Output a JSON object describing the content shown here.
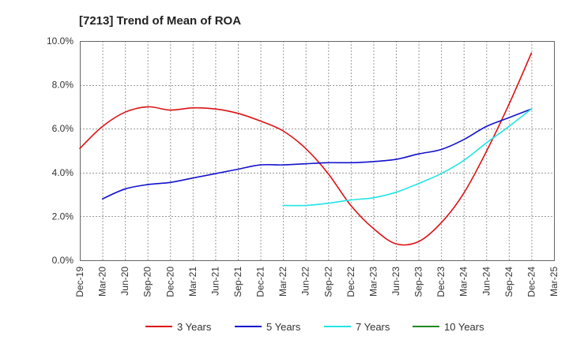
{
  "chart_data": {
    "type": "line",
    "title": "[7213]  Trend of Mean of ROA",
    "xlabel": "",
    "ylabel": "",
    "x_ticks": [
      "Dec-19",
      "Mar-20",
      "Jun-20",
      "Sep-20",
      "Dec-20",
      "Mar-21",
      "Jun-21",
      "Sep-21",
      "Dec-21",
      "Mar-22",
      "Jun-22",
      "Sep-22",
      "Dec-22",
      "Mar-23",
      "Jun-23",
      "Sep-23",
      "Dec-23",
      "Mar-24",
      "Jun-24",
      "Sep-24",
      "Dec-24",
      "Mar-25"
    ],
    "y_ticks": [
      "0.0%",
      "2.0%",
      "4.0%",
      "6.0%",
      "8.0%",
      "10.0%"
    ],
    "ylim": [
      0,
      10
    ],
    "grid": true,
    "legend_position": "bottom",
    "series": [
      {
        "name": "3 Years",
        "color": "#dd1111",
        "values": [
          [
            0,
            5.1
          ],
          [
            1,
            6.1
          ],
          [
            2,
            6.75
          ],
          [
            3,
            7.0
          ],
          [
            4,
            6.85
          ],
          [
            5,
            6.95
          ],
          [
            6,
            6.9
          ],
          [
            7,
            6.7
          ],
          [
            8,
            6.35
          ],
          [
            9,
            5.9
          ],
          [
            10,
            5.1
          ],
          [
            11,
            3.95
          ],
          [
            12,
            2.5
          ],
          [
            13,
            1.45
          ],
          [
            14,
            0.75
          ],
          [
            15,
            0.85
          ],
          [
            16,
            1.7
          ],
          [
            17,
            3.05
          ],
          [
            18,
            4.95
          ],
          [
            19,
            7.1
          ],
          [
            20,
            9.45
          ]
        ]
      },
      {
        "name": "5 Years",
        "color": "#1111cc",
        "values": [
          [
            1,
            2.8
          ],
          [
            2,
            3.25
          ],
          [
            3,
            3.45
          ],
          [
            4,
            3.55
          ],
          [
            5,
            3.75
          ],
          [
            6,
            3.95
          ],
          [
            7,
            4.15
          ],
          [
            8,
            4.35
          ],
          [
            9,
            4.35
          ],
          [
            10,
            4.4
          ],
          [
            11,
            4.45
          ],
          [
            12,
            4.45
          ],
          [
            13,
            4.5
          ],
          [
            14,
            4.6
          ],
          [
            15,
            4.85
          ],
          [
            16,
            5.05
          ],
          [
            17,
            5.5
          ],
          [
            18,
            6.1
          ],
          [
            19,
            6.5
          ],
          [
            20,
            6.9
          ]
        ]
      },
      {
        "name": "7 Years",
        "color": "#22e5e5",
        "values": [
          [
            9,
            2.5
          ],
          [
            10,
            2.5
          ],
          [
            11,
            2.6
          ],
          [
            12,
            2.75
          ],
          [
            13,
            2.85
          ],
          [
            14,
            3.1
          ],
          [
            15,
            3.5
          ],
          [
            16,
            3.95
          ],
          [
            17,
            4.55
          ],
          [
            18,
            5.35
          ],
          [
            19,
            6.1
          ],
          [
            20,
            6.9
          ]
        ]
      },
      {
        "name": "10 Years",
        "color": "#228822",
        "values": []
      }
    ]
  }
}
